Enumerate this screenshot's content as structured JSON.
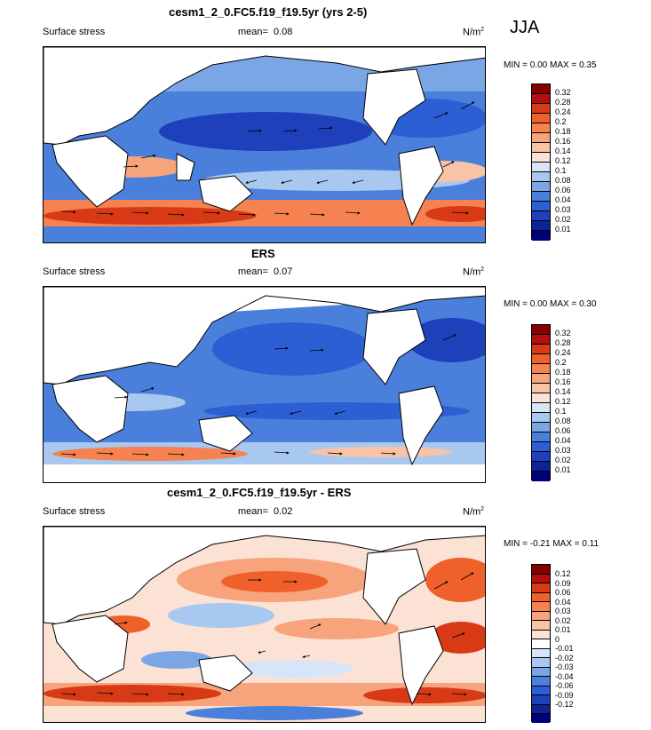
{
  "season": "JJA",
  "panels": [
    {
      "title": "cesm1_2_0.FC5.f19_f19.5yr (yrs 2-5)",
      "variable": "Surface stress",
      "mean_label": "mean=",
      "mean_value": "0.08",
      "units": "N/m",
      "units_exp": "2",
      "min_label": "MIN =",
      "min_value": "0.00",
      "max_label": "MAX =",
      "max_value": "0.35",
      "colorbar_labels": [
        "0.32",
        "0.28",
        "0.24",
        "0.2",
        "0.18",
        "0.16",
        "0.14",
        "0.12",
        "0.1",
        "0.08",
        "0.06",
        "0.04",
        "0.03",
        "0.02",
        "0.01"
      ]
    },
    {
      "title": "ERS",
      "variable": "Surface stress",
      "mean_label": "mean=",
      "mean_value": "0.07",
      "units": "N/m",
      "units_exp": "2",
      "min_label": "MIN =",
      "min_value": "0.00",
      "max_label": "MAX =",
      "max_value": "0.30",
      "colorbar_labels": [
        "0.32",
        "0.28",
        "0.24",
        "0.2",
        "0.18",
        "0.16",
        "0.14",
        "0.12",
        "0.1",
        "0.08",
        "0.06",
        "0.04",
        "0.03",
        "0.02",
        "0.01"
      ]
    },
    {
      "title": "cesm1_2_0.FC5.f19_f19.5yr - ERS",
      "variable": "Surface stress",
      "mean_label": "mean=",
      "mean_value": "0.02",
      "units": "N/m",
      "units_exp": "2",
      "min_label": "MIN =",
      "min_value": "-0.21",
      "max_label": "MAX =",
      "max_value": "0.11",
      "colorbar_labels": [
        "0.12",
        "0.09",
        "0.06",
        "0.04",
        "0.03",
        "0.02",
        "0.01",
        "0",
        "-0.01",
        "-0.02",
        "-0.03",
        "-0.04",
        "-0.06",
        "-0.09",
        "-0.12"
      ]
    }
  ],
  "colors": {
    "abs_scale": [
      "#870000",
      "#b40e0e",
      "#d93a16",
      "#f0602a",
      "#f58250",
      "#f7a37c",
      "#f8c3a6",
      "#fbe2d4",
      "#d6e6f8",
      "#a9c8f0",
      "#7ba6e6",
      "#4a80dc",
      "#2c5ed4",
      "#1e40bb",
      "#0d2495",
      "#00007a"
    ],
    "diff_scale": [
      "#870000",
      "#b40e0e",
      "#d93a16",
      "#f0602a",
      "#f58250",
      "#f7a37c",
      "#f8c3a6",
      "#fbe2d4",
      "#ffffff",
      "#d6e6f8",
      "#a9c8f0",
      "#7ba6e6",
      "#4a80dc",
      "#2c5ed4",
      "#1e40bb",
      "#0d2495",
      "#00007a"
    ]
  }
}
